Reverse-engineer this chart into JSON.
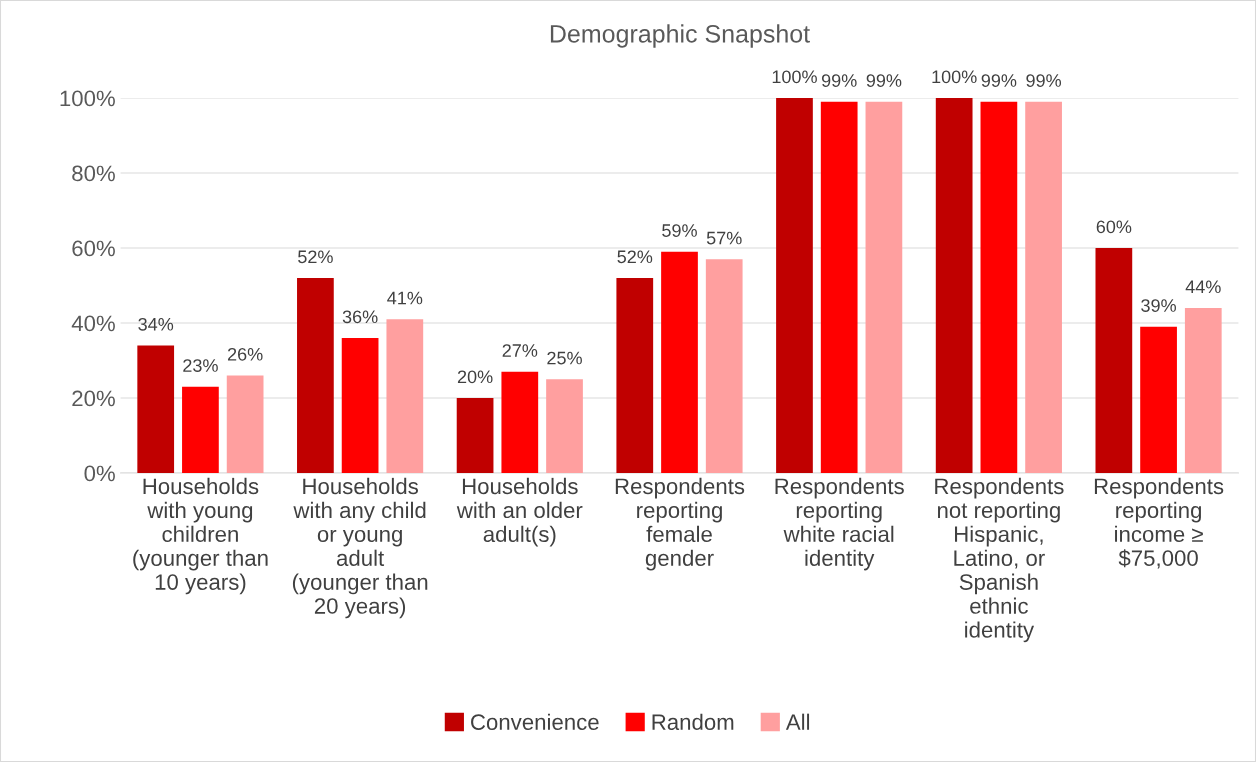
{
  "chart_data": {
    "type": "bar",
    "title": "Demographic Snapshot",
    "categories": [
      "Households\nwith young\nchildren\n(younger than\n10 years)",
      "Households\nwith any child\nor young\nadult\n(younger than\n20 years)",
      "Households\nwith an older\nadult(s)",
      "Respondents\nreporting\nfemale\ngender",
      "Respondents\nreporting\nwhite racial\nidentity",
      "Respondents\nnot reporting\nHispanic,\nLatino, or\nSpanish\nethnic\nidentity",
      "Respondents\nreporting\nincome ≥\n$75,000"
    ],
    "series": [
      {
        "name": "Convenience",
        "color": "#c00000",
        "values": [
          34,
          52,
          20,
          52,
          100,
          100,
          60
        ],
        "value_labels": [
          "34%",
          "52%",
          "20%",
          "52%",
          "100%",
          "100%",
          "60%"
        ]
      },
      {
        "name": "Random",
        "color": "#ff0000",
        "values": [
          23,
          36,
          27,
          59,
          99,
          99,
          39
        ],
        "value_labels": [
          "23%",
          "36%",
          "27%",
          "59%",
          "99%",
          "99%",
          "39%"
        ]
      },
      {
        "name": "All",
        "color": "#ff9f9f",
        "values": [
          26,
          41,
          25,
          57,
          99,
          99,
          44
        ],
        "value_labels": [
          "26%",
          "41%",
          "25%",
          "57%",
          "99%",
          "99%",
          "44%"
        ]
      }
    ],
    "ylim": [
      0,
      100
    ],
    "yticks": [
      {
        "value": 0,
        "label": "0%"
      },
      {
        "value": 20,
        "label": "20%"
      },
      {
        "value": 40,
        "label": "40%"
      },
      {
        "value": 60,
        "label": "60%"
      },
      {
        "value": 80,
        "label": "80%"
      },
      {
        "value": 100,
        "label": "100%"
      }
    ],
    "grid": "y",
    "legend": "bottom"
  }
}
